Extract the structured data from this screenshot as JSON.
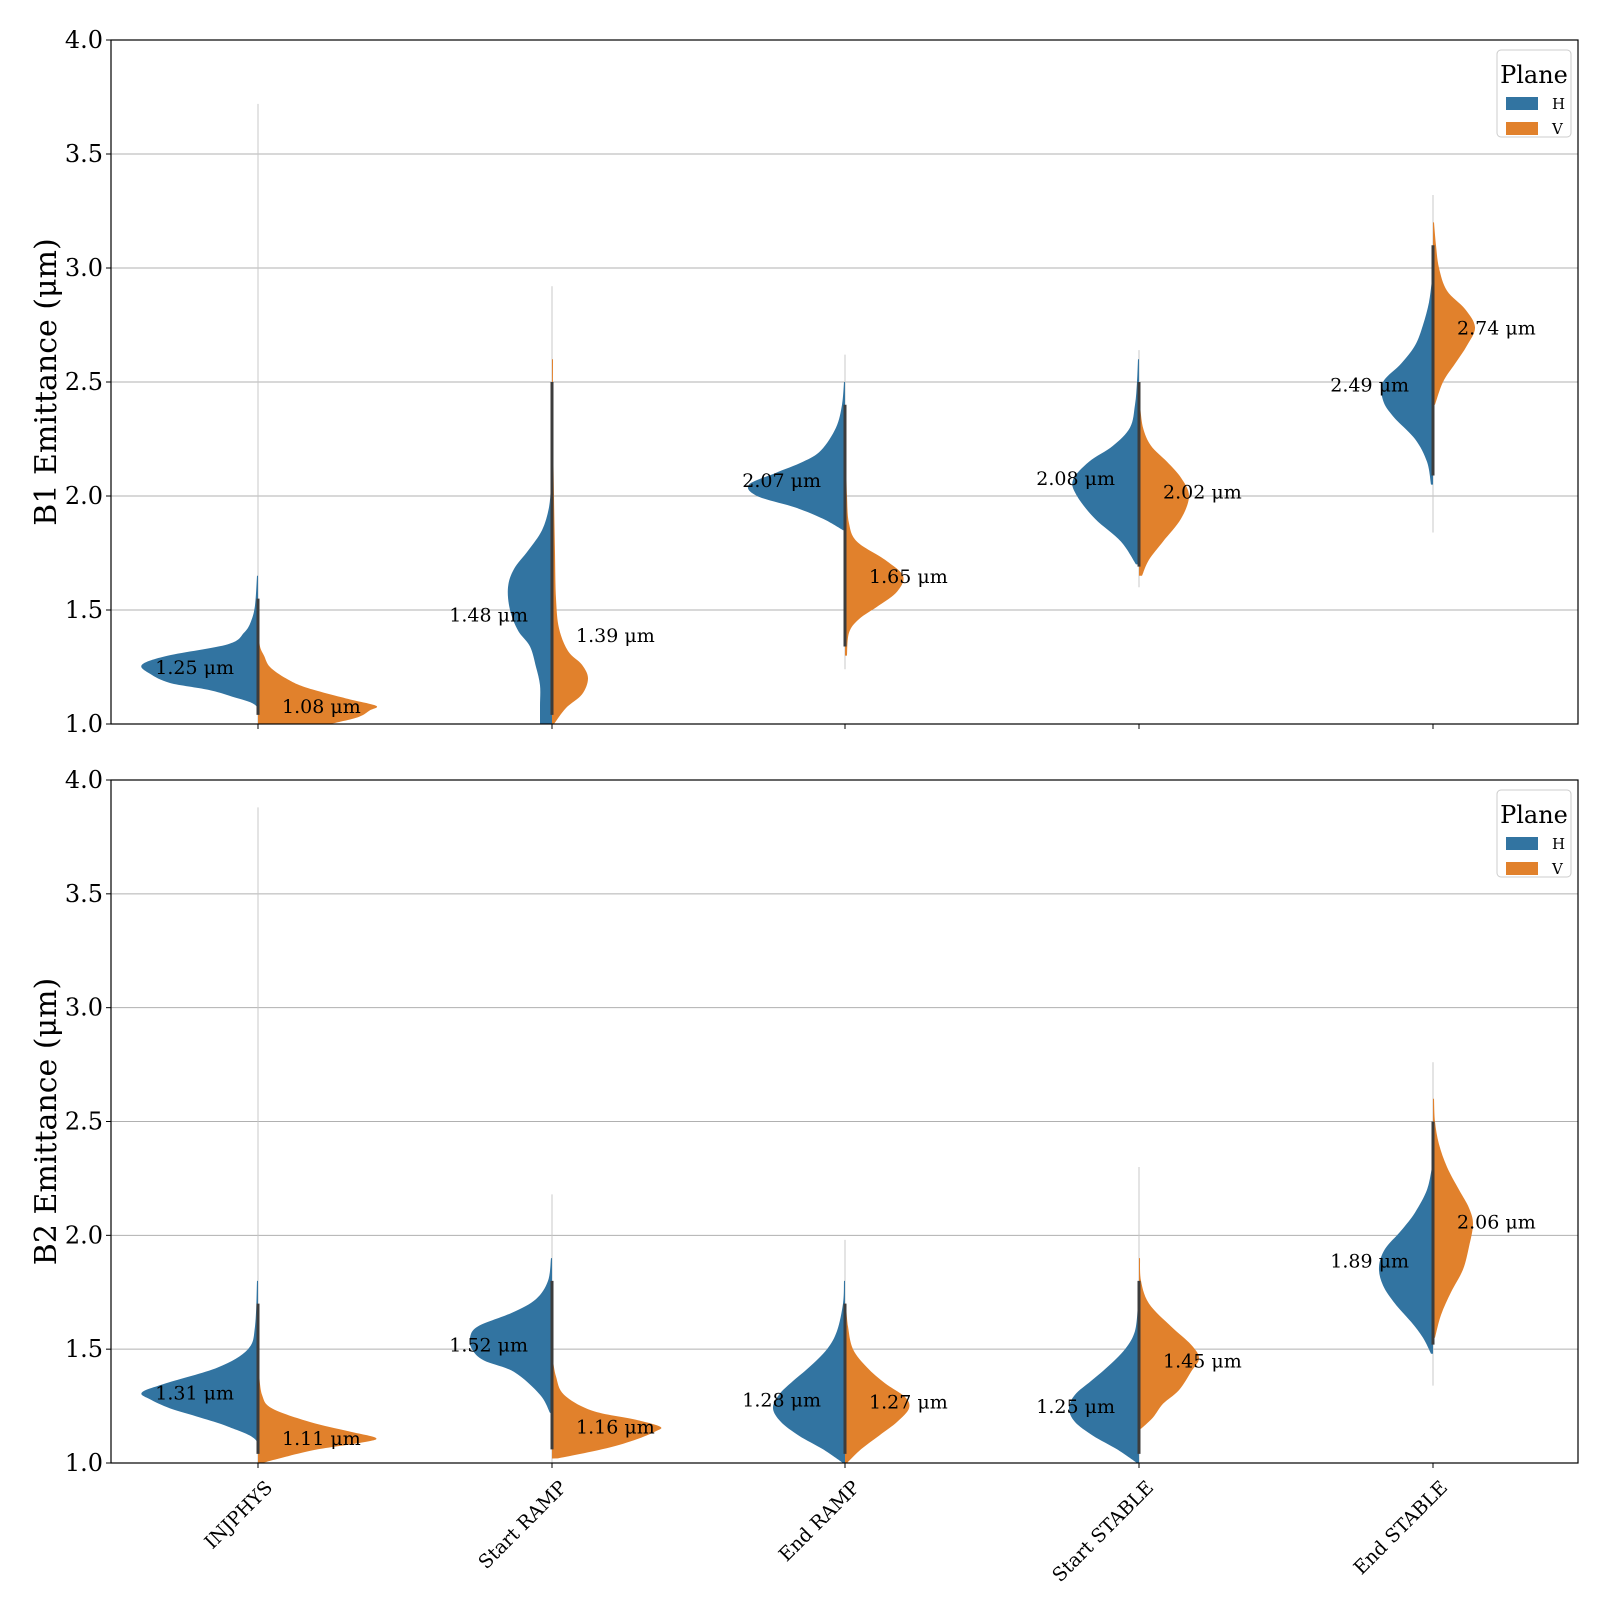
{
  "chart_data": [
    {
      "type": "violin",
      "ylabel": "B1 Emittance (μm)",
      "ylim": [
        1.0,
        4.0
      ],
      "yticks": [
        1.0,
        1.5,
        2.0,
        2.5,
        3.0,
        3.5,
        4.0
      ],
      "grid": true,
      "legend": {
        "title": "Plane",
        "position": "top-right"
      },
      "categories": [
        "INJPHYS",
        "Start RAMP",
        "End RAMP",
        "Start STABLE",
        "End STABLE"
      ],
      "series": [
        {
          "name": "H",
          "color": "#3274a1",
          "medians": [
            1.25,
            1.48,
            2.07,
            2.08,
            2.49
          ],
          "labels": [
            "1.25 μm",
            "1.48 μm",
            "2.07 μm",
            "2.08 μm",
            "2.49 μm"
          ]
        },
        {
          "name": "V",
          "color": "#e1812c",
          "medians": [
            1.08,
            1.39,
            1.65,
            2.02,
            2.74
          ],
          "labels": [
            "1.08 μm",
            "1.39 μm",
            "1.65 μm",
            "2.02 μm",
            "2.74 μm"
          ]
        }
      ]
    },
    {
      "type": "violin",
      "ylabel": "B2 Emittance (μm)",
      "ylim": [
        1.0,
        4.0
      ],
      "yticks": [
        1.0,
        1.5,
        2.0,
        2.5,
        3.0,
        3.5,
        4.0
      ],
      "grid": true,
      "legend": {
        "title": "Plane",
        "position": "top-right"
      },
      "categories": [
        "INJPHYS",
        "Start RAMP",
        "End RAMP",
        "Start STABLE",
        "End STABLE"
      ],
      "series": [
        {
          "name": "H",
          "color": "#3274a1",
          "medians": [
            1.31,
            1.52,
            1.28,
            1.25,
            1.89
          ],
          "labels": [
            "1.31 μm",
            "1.52 μm",
            "1.28 μm",
            "1.25 μm",
            "1.89 μm"
          ]
        },
        {
          "name": "V",
          "color": "#e1812c",
          "medians": [
            1.11,
            1.16,
            1.27,
            1.45,
            2.06
          ],
          "labels": [
            "1.11 μm",
            "1.16 μm",
            "1.27 μm",
            "1.45 μm",
            "2.06 μm"
          ]
        }
      ]
    }
  ]
}
